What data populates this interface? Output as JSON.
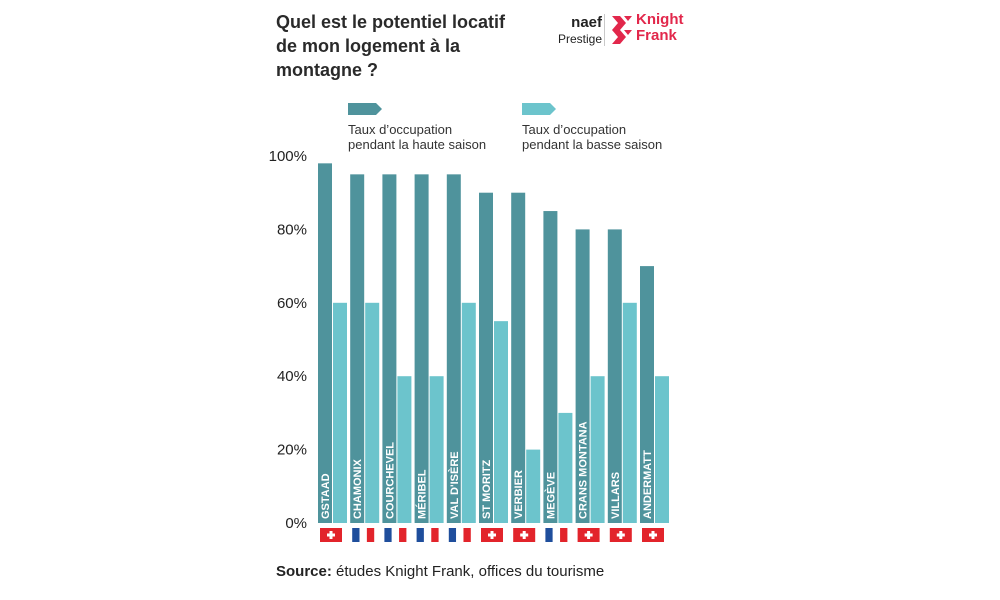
{
  "brand": {
    "naef": "naef",
    "prestige": "Prestige",
    "kf_line1": "Knight",
    "kf_line2": "Frank",
    "kf_color": "#e2274b"
  },
  "colors": {
    "high": "#4f939c",
    "low": "#6cc4cc",
    "swiss": "#e2242b",
    "fr_blue": "#1f4e9c",
    "fr_red": "#e2242b"
  },
  "source": {
    "label": "Source:",
    "text": "études Knight Frank, offices du tourisme"
  },
  "chart_data": {
    "type": "bar",
    "title": "Quel est le potentiel locatif de mon logement à la montagne ?",
    "categories": [
      "GSTAAD",
      "CHAMONIX",
      "COURCHEVEL",
      "MÉRIBEL",
      "VAL D'ISÈRE",
      "ST MORITZ",
      "VERBIER",
      "MEGÈVE",
      "CRANS MONTANA",
      "VILLARS",
      "ANDERMATT"
    ],
    "countries": [
      "CH",
      "FR",
      "FR",
      "FR",
      "FR",
      "CH",
      "CH",
      "FR",
      "CH",
      "CH",
      "CH"
    ],
    "series": [
      {
        "name": "Taux d'occupation pendant la haute saison",
        "legend_lines": [
          "Taux d’occupation",
          "pendant la haute saison"
        ],
        "values": [
          98,
          95,
          95,
          95,
          95,
          90,
          90,
          85,
          80,
          80,
          70
        ]
      },
      {
        "name": "Taux d'occupation pendant la basse saison",
        "legend_lines": [
          "Taux d’occupation",
          "pendant la basse saison"
        ],
        "values": [
          60,
          60,
          40,
          40,
          60,
          55,
          20,
          30,
          40,
          60,
          40
        ]
      }
    ],
    "yticks": [
      "100%",
      "80%",
      "60%",
      "40%",
      "20%",
      "0%"
    ],
    "ytick_values": [
      100,
      80,
      60,
      40,
      20,
      0
    ],
    "ylim": [
      0,
      100
    ],
    "grid": false,
    "legend_position": "top"
  }
}
